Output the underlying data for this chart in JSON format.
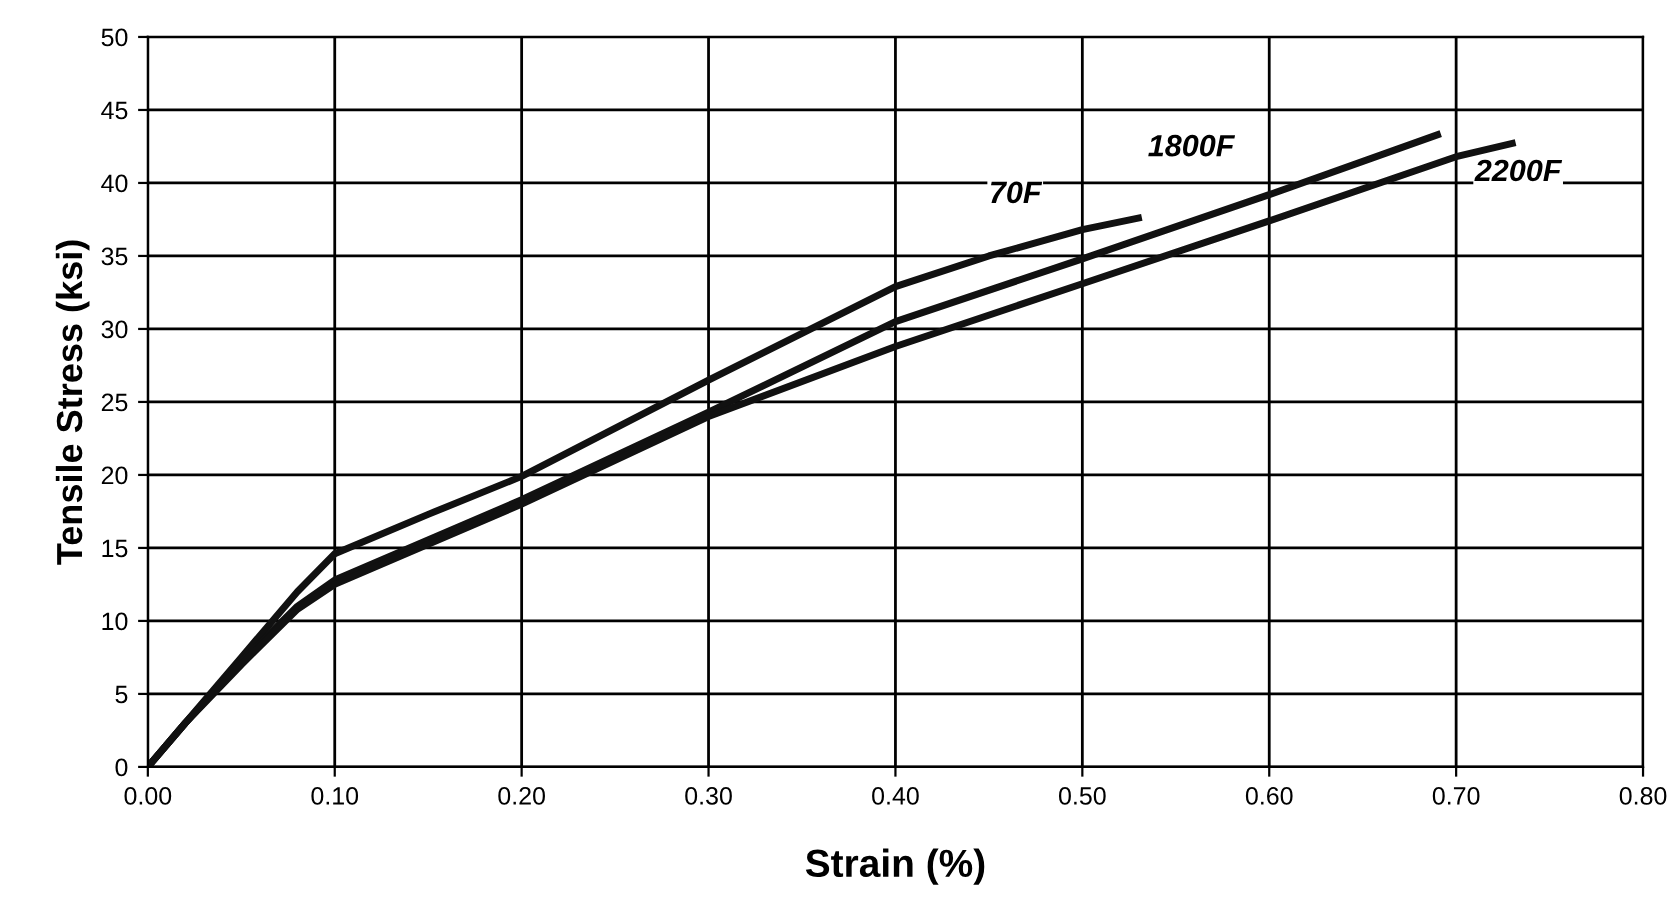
{
  "chart_data": {
    "type": "line",
    "xlabel": "Strain (%)",
    "ylabel": "Tensile Stress (ksi)",
    "series": [
      {
        "name": "70F",
        "color": "#111111",
        "x": [
          0,
          0.02,
          0.05,
          0.08,
          0.1,
          0.15,
          0.2,
          0.3,
          0.4,
          0.45,
          0.5,
          0.53
        ],
        "values": [
          0,
          3,
          7.5,
          12,
          14.6,
          17.3,
          19.9,
          26.5,
          32.9,
          35,
          36.8,
          37.6
        ]
      },
      {
        "name": "1800F",
        "color": "#111111",
        "x": [
          0,
          0.02,
          0.05,
          0.08,
          0.1,
          0.2,
          0.3,
          0.4,
          0.5,
          0.6,
          0.69
        ],
        "values": [
          0,
          3,
          7.2,
          11,
          12.8,
          18.3,
          24.3,
          30.5,
          34.8,
          39.2,
          43.3
        ]
      },
      {
        "name": "2200F",
        "color": "#111111",
        "x": [
          0,
          0.02,
          0.05,
          0.08,
          0.1,
          0.2,
          0.3,
          0.4,
          0.5,
          0.6,
          0.7,
          0.73
        ],
        "values": [
          0,
          3,
          7,
          10.8,
          12.5,
          18,
          24,
          28.8,
          33.1,
          37.4,
          41.8,
          42.7
        ]
      }
    ],
    "xlim": [
      0,
      0.8
    ],
    "ylim": [
      0,
      50
    ],
    "xticks": [
      {
        "value": 0,
        "label": "0.00"
      },
      {
        "value": 0.1,
        "label": "0.10"
      },
      {
        "value": 0.2,
        "label": "0.20"
      },
      {
        "value": 0.3,
        "label": "0.30"
      },
      {
        "value": 0.4,
        "label": "0.40"
      },
      {
        "value": 0.5,
        "label": "0.50"
      },
      {
        "value": 0.6,
        "label": "0.60"
      },
      {
        "value": 0.7,
        "label": "0.70"
      },
      {
        "value": 0.8,
        "label": "0.80"
      }
    ],
    "yticks": [
      0,
      5,
      10,
      15,
      20,
      25,
      30,
      35,
      40,
      45,
      50
    ],
    "grid": true,
    "marker": "none",
    "line_style": "solid"
  }
}
